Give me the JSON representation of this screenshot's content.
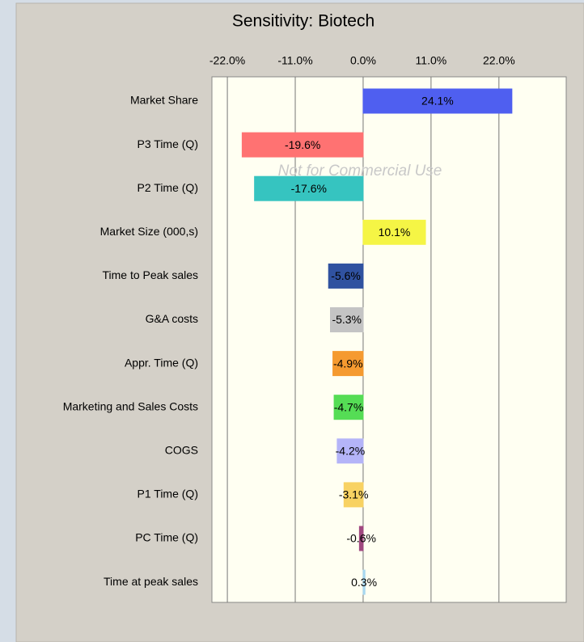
{
  "chart_data": {
    "type": "bar",
    "orientation": "horizontal",
    "title": "Sensitivity: Biotech",
    "annotation": "Not for Commercial Use",
    "categories": [
      "Market Share",
      "P3 Time (Q)",
      "P2 Time (Q)",
      "Market Size (000,s)",
      "Time to Peak sales",
      "G&A costs",
      "Appr. Time (Q)",
      "Marketing and Sales Costs",
      "COGS",
      "P1 Time (Q)",
      "PC Time (Q)",
      "Time at peak sales"
    ],
    "values": [
      24.1,
      -19.6,
      -17.6,
      10.1,
      -5.6,
      -5.3,
      -4.9,
      -4.7,
      -4.2,
      -3.1,
      -0.6,
      0.3
    ],
    "value_labels": [
      "24.1%",
      "-19.6%",
      "-17.6%",
      "10.1%",
      "-5.6%",
      "-5.3%",
      "-4.9%",
      "-4.7%",
      "-4.2%",
      "-3.1%",
      "-0.6%",
      "0.3%"
    ],
    "colors": [
      "#4f5ff0",
      "#ff7272",
      "#36c4c0",
      "#f5f545",
      "#3052a0",
      "#c4c4c4",
      "#f59a30",
      "#55dd55",
      "#b4b4f8",
      "#f8d262",
      "#a04880",
      "#a8d8f0"
    ],
    "xlim": [
      -24.5,
      32.9
    ],
    "xticks": [
      {
        "value": -22,
        "label": "-22.0%"
      },
      {
        "value": -11,
        "label": "-11.0%"
      },
      {
        "value": 0,
        "label": "0.0%"
      },
      {
        "value": 11,
        "label": "11.0%"
      },
      {
        "value": 22,
        "label": "22.0%"
      }
    ],
    "grid": true
  }
}
